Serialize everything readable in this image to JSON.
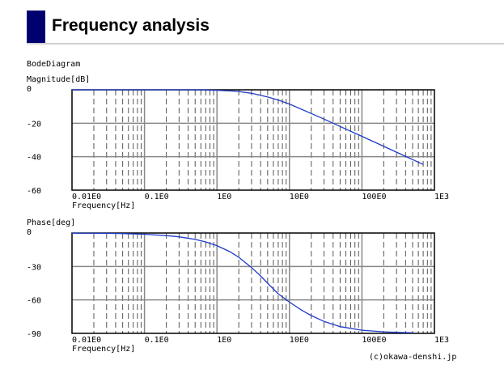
{
  "header": {
    "title": "Frequency analysis",
    "accent_color": "#00006e"
  },
  "diagram_title": "BodeDiagram",
  "copyright": "(c)okawa-denshi.jp",
  "chart_data": [
    {
      "type": "line",
      "ylabel": "Magnitude[dB]",
      "xlabel": "Frequency[Hz]",
      "x_scale": "log",
      "xlim": [
        0.01,
        1000
      ],
      "ylim": [
        -60,
        0
      ],
      "x_tick_labels": [
        "0.01E0",
        "0.1E0",
        "1E0",
        "10E0",
        "100E0",
        "1E3"
      ],
      "x_tick_values": [
        0.01,
        0.1,
        1,
        10,
        100,
        1000
      ],
      "y_tick_labels": [
        "0",
        "-20",
        "-40",
        "-60"
      ],
      "y_tick_values": [
        0,
        -20,
        -40,
        -60
      ],
      "grid": true,
      "line_color": "#1e3cc8",
      "series": [
        {
          "x": [
            0.01,
            0.1,
            0.3,
            0.6,
            1,
            1.5,
            2,
            3,
            5,
            7,
            10,
            20,
            30,
            50,
            100,
            200,
            300,
            500,
            700
          ],
          "values": [
            0,
            0,
            0,
            0,
            -0.3,
            -0.7,
            -1,
            -2.1,
            -4.3,
            -6.1,
            -8.5,
            -14.2,
            -17.5,
            -21.9,
            -27.8,
            -33.8,
            -37.3,
            -41.7,
            -44.6
          ]
        }
      ]
    },
    {
      "type": "line",
      "ylabel": "Phase[deg]",
      "xlabel": "Frequency[Hz]",
      "x_scale": "log",
      "xlim": [
        0.01,
        1000
      ],
      "ylim": [
        -90,
        0
      ],
      "x_tick_labels": [
        "0.01E0",
        "0.1E0",
        "1E0",
        "10E0",
        "100E0",
        "1E3"
      ],
      "x_tick_values": [
        0.01,
        0.1,
        1,
        10,
        100,
        1000
      ],
      "y_tick_labels": [
        "0",
        "-30",
        "-60",
        "-90"
      ],
      "y_tick_values": [
        0,
        -30,
        -60,
        -90
      ],
      "grid": true,
      "line_color": "#1e3cc8",
      "series": [
        {
          "x": [
            0.01,
            0.03,
            0.05,
            0.1,
            0.2,
            0.3,
            0.5,
            0.7,
            1,
            1.5,
            2,
            3,
            4,
            5,
            7,
            10,
            15,
            20,
            30,
            50,
            100,
            200,
            300,
            500
          ],
          "values": [
            -0.1,
            -0.3,
            -0.5,
            -1.1,
            -2.3,
            -3.4,
            -5.7,
            -8,
            -11.3,
            -16.7,
            -21.8,
            -31,
            -38.5,
            -45,
            -54.5,
            -62,
            -69.5,
            -74,
            -79.3,
            -84,
            -87.2,
            -88.6,
            -89.1,
            -89.5
          ]
        }
      ]
    }
  ]
}
